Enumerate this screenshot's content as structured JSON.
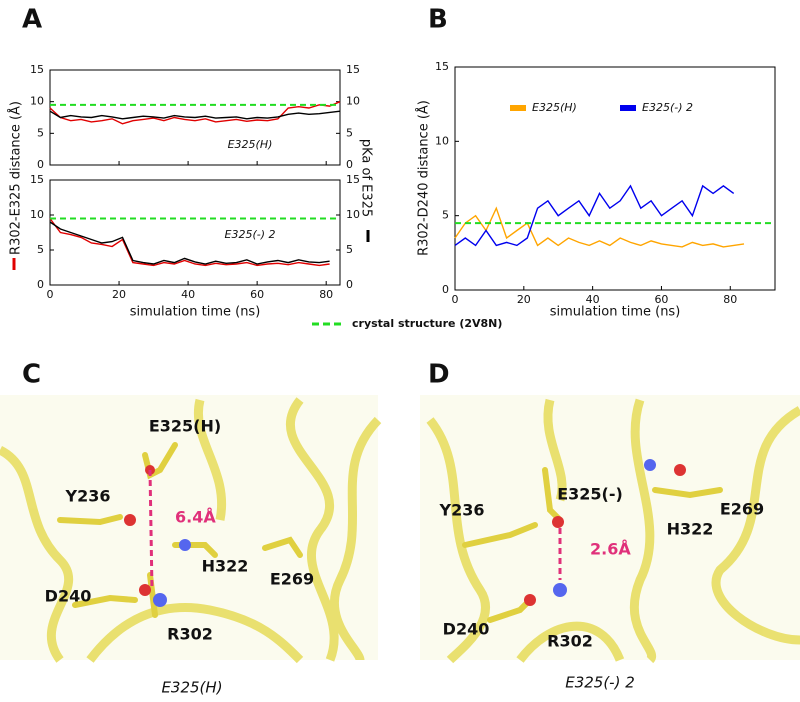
{
  "panel_labels": [
    "A",
    "B",
    "C",
    "D"
  ],
  "shared": {
    "y_label": "R302-E325 distance (Å)",
    "y2_label": "pKa of E325",
    "x_label": "simulation time (ns)",
    "legend": "crystal structure (2V8N)"
  },
  "chart_data": [
    {
      "type": "line",
      "annotation": "E325(H)",
      "xlim": [
        0,
        84
      ],
      "xticks": [
        0,
        20,
        40,
        60,
        80
      ],
      "show_xtick_labels": false,
      "ylim": [
        0,
        15
      ],
      "yticks": [
        0,
        5,
        10,
        15
      ],
      "y2lim": [
        0,
        15
      ],
      "y2ticks": [
        0,
        5,
        10,
        15
      ],
      "reference": {
        "value": 9.5,
        "color": "#22dd22"
      },
      "series": [
        {
          "color": "#e00000",
          "x": [
            0,
            3,
            6,
            9,
            12,
            15,
            18,
            21,
            24,
            27,
            30,
            33,
            36,
            39,
            42,
            45,
            48,
            51,
            54,
            57,
            60,
            63,
            66,
            69,
            72,
            75,
            78,
            81,
            84
          ],
          "values": [
            9,
            7.5,
            7,
            7.2,
            6.8,
            7,
            7.3,
            6.5,
            7,
            7.2,
            7.4,
            7,
            7.5,
            7.2,
            7,
            7.3,
            6.8,
            7,
            7.2,
            6.9,
            7.1,
            7,
            7.3,
            9,
            9.2,
            9,
            9.5,
            9.3,
            10
          ]
        },
        {
          "color": "#000000",
          "axis": "y2",
          "x": [
            0,
            3,
            6,
            9,
            12,
            15,
            18,
            21,
            24,
            27,
            30,
            33,
            36,
            39,
            42,
            45,
            48,
            51,
            54,
            57,
            60,
            63,
            66,
            69,
            72,
            75,
            78,
            81,
            84
          ],
          "values": [
            8.5,
            7.5,
            7.8,
            7.6,
            7.5,
            7.8,
            7.6,
            7.3,
            7.5,
            7.7,
            7.6,
            7.4,
            7.8,
            7.6,
            7.5,
            7.7,
            7.4,
            7.5,
            7.6,
            7.3,
            7.5,
            7.4,
            7.6,
            8,
            8.2,
            8,
            8.1,
            8.3,
            8.5
          ]
        }
      ]
    },
    {
      "type": "line",
      "annotation": "E325(-) 2",
      "xlim": [
        0,
        84
      ],
      "xticks": [
        0,
        20,
        40,
        60,
        80
      ],
      "show_xtick_labels": true,
      "ylim": [
        0,
        15
      ],
      "yticks": [
        0,
        5,
        10,
        15
      ],
      "y2lim": [
        0,
        15
      ],
      "y2ticks": [
        0,
        5,
        10,
        15
      ],
      "reference": {
        "value": 9.5,
        "color": "#22dd22"
      },
      "series": [
        {
          "color": "#e00000",
          "x": [
            0,
            3,
            6,
            9,
            12,
            15,
            18,
            21,
            24,
            27,
            30,
            33,
            36,
            39,
            42,
            45,
            48,
            51,
            54,
            57,
            60,
            63,
            66,
            69,
            72,
            75,
            78,
            81
          ],
          "values": [
            9.5,
            7.5,
            7.2,
            6.8,
            6,
            5.8,
            5.5,
            6.5,
            3.2,
            3,
            2.8,
            3.2,
            3,
            3.5,
            3,
            2.8,
            3.1,
            2.9,
            3,
            3.2,
            2.8,
            3,
            3.1,
            2.9,
            3.2,
            3,
            2.8,
            3
          ]
        },
        {
          "color": "#000000",
          "axis": "y2",
          "x": [
            0,
            3,
            6,
            9,
            12,
            15,
            18,
            21,
            24,
            27,
            30,
            33,
            36,
            39,
            42,
            45,
            48,
            51,
            54,
            57,
            60,
            63,
            66,
            69,
            72,
            75,
            78,
            81
          ],
          "values": [
            9,
            8,
            7.5,
            7,
            6.5,
            6,
            6.2,
            6.8,
            3.5,
            3.2,
            3,
            3.5,
            3.2,
            3.8,
            3.3,
            3,
            3.4,
            3.1,
            3.2,
            3.6,
            3,
            3.3,
            3.5,
            3.2,
            3.6,
            3.3,
            3.2,
            3.4
          ]
        }
      ]
    },
    {
      "type": "line",
      "x_label": "simulation time (ns)",
      "y_label": "R302-D240 distance (Å)",
      "xlim": [
        0,
        93
      ],
      "xticks": [
        0,
        20,
        40,
        60,
        80
      ],
      "show_xtick_labels": true,
      "ylim": [
        0,
        15
      ],
      "yticks": [
        0,
        5,
        10,
        15
      ],
      "reference": {
        "value": 4.5,
        "color": "#22dd22"
      },
      "series": [
        {
          "name": "E325(H)",
          "color": "#ffa500",
          "x": [
            0,
            3,
            6,
            9,
            12,
            15,
            18,
            21,
            24,
            27,
            30,
            33,
            36,
            39,
            42,
            45,
            48,
            51,
            54,
            57,
            60,
            63,
            66,
            69,
            72,
            75,
            78,
            81,
            84
          ],
          "values": [
            3.5,
            4.5,
            5,
            4,
            5.5,
            3.5,
            4,
            4.5,
            3,
            3.5,
            3,
            3.5,
            3.2,
            3,
            3.3,
            3,
            3.5,
            3.2,
            3,
            3.3,
            3.1,
            3,
            2.9,
            3.2,
            3,
            3.1,
            2.9,
            3,
            3.1
          ]
        },
        {
          "name": "E325(-) 2",
          "color": "#0000ee",
          "x": [
            0,
            3,
            6,
            9,
            12,
            15,
            18,
            21,
            24,
            27,
            30,
            33,
            36,
            39,
            42,
            45,
            48,
            51,
            54,
            57,
            60,
            63,
            66,
            69,
            72,
            75,
            78,
            81
          ],
          "values": [
            3,
            3.5,
            3,
            4,
            3,
            3.2,
            3,
            3.5,
            5.5,
            6,
            5,
            5.5,
            6,
            5,
            6.5,
            5.5,
            6,
            7,
            5.5,
            6,
            5,
            5.5,
            6,
            5,
            7,
            6.5,
            7,
            6.5
          ]
        }
      ]
    }
  ],
  "structures": [
    {
      "labels": [
        "E325(H)",
        "Y236",
        "H322",
        "E269",
        "D240",
        "R302"
      ],
      "distance": "6.4Å",
      "caption": "E325(H)"
    },
    {
      "labels": [
        "E325(-)",
        "Y236",
        "H322",
        "E269",
        "D240",
        "R302"
      ],
      "distance": "2.6Å",
      "caption": "E325(-) 2"
    }
  ]
}
